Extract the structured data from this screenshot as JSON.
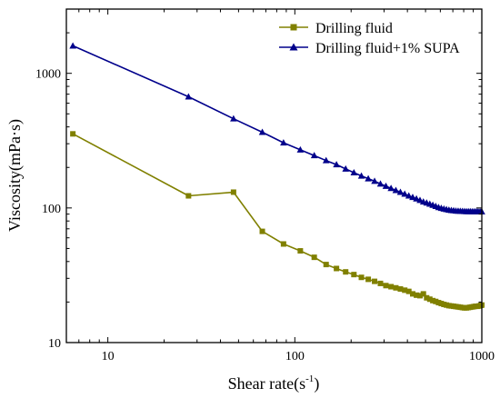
{
  "chart_data": {
    "type": "line",
    "xlabel": "Shear rate(s",
    "xlabel_sup": "-1",
    "xlabel_close": ")",
    "ylabel": "Viscosity(mPa·s)",
    "x_scale": "log",
    "y_scale": "log",
    "xlim": [
      6,
      1000
    ],
    "ylim": [
      10,
      3000
    ],
    "x_ticks": [
      10,
      100,
      1000
    ],
    "x_tick_labels": [
      "10",
      "100",
      "1000"
    ],
    "y_ticks": [
      10,
      100,
      1000
    ],
    "y_tick_labels": [
      "10",
      "100",
      "1000"
    ],
    "grid": false,
    "legend_position": "top-right",
    "series": [
      {
        "name": "Drilling fluid",
        "color": "#808000",
        "marker": "square",
        "x": [
          6.5,
          27,
          47,
          67,
          87,
          107,
          127,
          147,
          167,
          187,
          207,
          227,
          247,
          267,
          287,
          307,
          327,
          347,
          367,
          387,
          407,
          427,
          447,
          467,
          487,
          507,
          527,
          547,
          567,
          587,
          607,
          627,
          647,
          667,
          687,
          707,
          727,
          747,
          767,
          787,
          807,
          827,
          847,
          867,
          887,
          907,
          927,
          947,
          967,
          987,
          1000
        ],
        "y": [
          355,
          123,
          131,
          67,
          54,
          48,
          43,
          38,
          35.5,
          33.5,
          32,
          30.5,
          29.5,
          28.5,
          27.5,
          26.5,
          26,
          25.5,
          25,
          24.5,
          24,
          23,
          22.5,
          22.3,
          23,
          21.5,
          21,
          20.5,
          20.2,
          19.8,
          19.5,
          19.2,
          19,
          18.8,
          18.7,
          18.6,
          18.5,
          18.4,
          18.3,
          18.2,
          18.1,
          18.1,
          18.2,
          18.3,
          18.4,
          18.5,
          18.6,
          18.6,
          18.7,
          18.9,
          19
        ]
      },
      {
        "name": "Drilling fluid+1% SUPA",
        "color": "#00008B",
        "marker": "triangle",
        "x": [
          6.5,
          27,
          47,
          67,
          87,
          107,
          127,
          147,
          167,
          187,
          207,
          227,
          247,
          267,
          287,
          307,
          327,
          347,
          367,
          387,
          407,
          427,
          447,
          467,
          487,
          507,
          527,
          547,
          567,
          587,
          607,
          627,
          647,
          667,
          687,
          707,
          727,
          747,
          767,
          787,
          807,
          827,
          847,
          867,
          887,
          907,
          927,
          947,
          967,
          987,
          1000
        ],
        "y": [
          1600,
          670,
          460,
          365,
          305,
          270,
          245,
          225,
          210,
          195,
          183,
          173,
          165,
          158,
          151,
          145,
          140,
          135,
          131,
          127,
          123,
          120,
          117,
          114,
          111,
          109,
          107,
          105,
          103,
          101,
          99.5,
          98.5,
          97.5,
          96.5,
          96,
          95.5,
          95,
          94.8,
          94.6,
          94.4,
          94.3,
          94.2,
          94.1,
          94.1,
          94,
          94,
          94,
          93.9,
          93.8,
          93.8,
          93.7
        ]
      }
    ]
  }
}
